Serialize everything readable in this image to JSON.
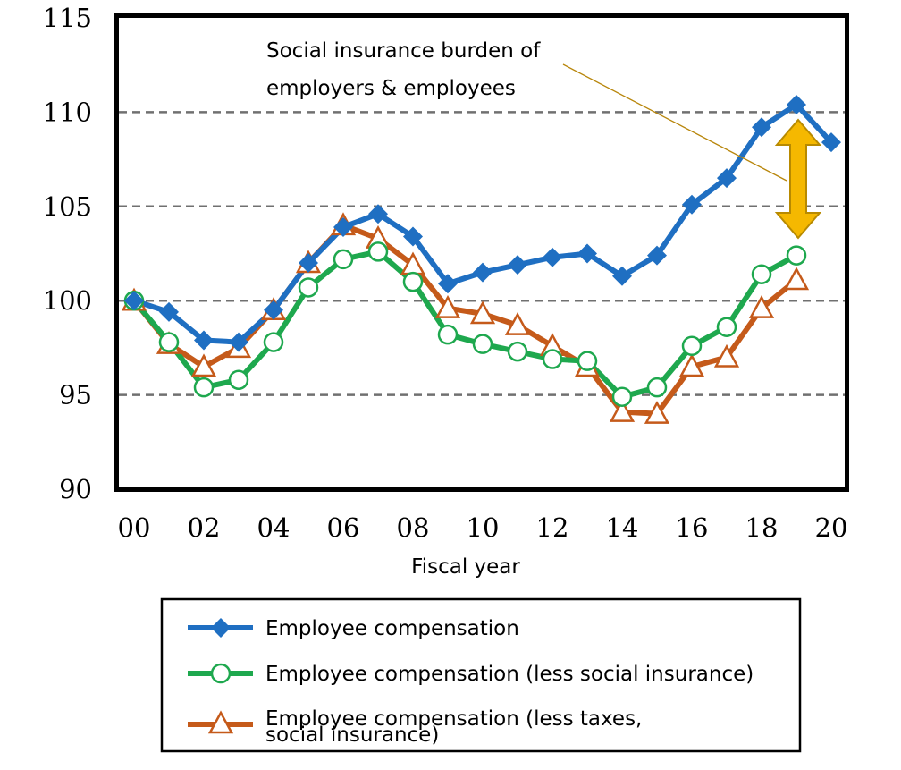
{
  "chart_data": {
    "type": "line",
    "x": [
      "00",
      "01",
      "02",
      "03",
      "04",
      "05",
      "06",
      "07",
      "08",
      "09",
      "10",
      "11",
      "12",
      "13",
      "14",
      "15",
      "16",
      "17",
      "18",
      "19",
      "20"
    ],
    "x_tick_labels": [
      "00",
      "02",
      "04",
      "06",
      "08",
      "10",
      "12",
      "14",
      "16",
      "18",
      "20"
    ],
    "xlabel": "Fiscal year",
    "ylabel": "",
    "ylim": [
      90,
      115
    ],
    "y_ticks": [
      90,
      95,
      100,
      105,
      110,
      115
    ],
    "grid": "horizontal dashed at 95, 100, 105, 110",
    "legend_position": "bottom",
    "series": [
      {
        "name": "Employee compensation",
        "color": "#1f6fc2",
        "marker": "filled-diamond",
        "values": [
          100.0,
          99.4,
          97.9,
          97.8,
          99.5,
          102.0,
          103.9,
          104.6,
          103.4,
          100.9,
          101.5,
          101.9,
          102.3,
          102.5,
          101.3,
          102.4,
          105.1,
          106.5,
          109.2,
          110.4,
          108.4
        ]
      },
      {
        "name": "Employee compensation (less social insurance)",
        "color": "#1ea84e",
        "marker": "open-circle",
        "values": [
          100.0,
          97.8,
          95.4,
          95.8,
          97.8,
          100.7,
          102.2,
          102.6,
          101.0,
          98.2,
          97.7,
          97.3,
          96.9,
          96.8,
          94.9,
          95.4,
          97.6,
          98.6,
          101.4,
          102.4,
          null
        ]
      },
      {
        "name": "Employee compensation (less taxes, social insurance)",
        "color": "#c55a1a",
        "marker": "open-triangle",
        "values": [
          100.0,
          97.7,
          96.5,
          97.5,
          99.5,
          102.0,
          104.0,
          103.3,
          101.9,
          99.6,
          99.3,
          98.7,
          97.6,
          96.5,
          94.1,
          94.0,
          96.5,
          97.0,
          99.6,
          101.1,
          null
        ]
      }
    ],
    "annotation": {
      "line1": "Social insurance burden of",
      "line2": "employers & employees",
      "arrow_color": "#f5b800"
    },
    "legend": {
      "entry1": "Employee compensation",
      "entry2": "Employee compensation (less social insurance)",
      "entry3_line1": "Employee compensation (less taxes,",
      "entry3_line2": "social insurance)"
    }
  }
}
